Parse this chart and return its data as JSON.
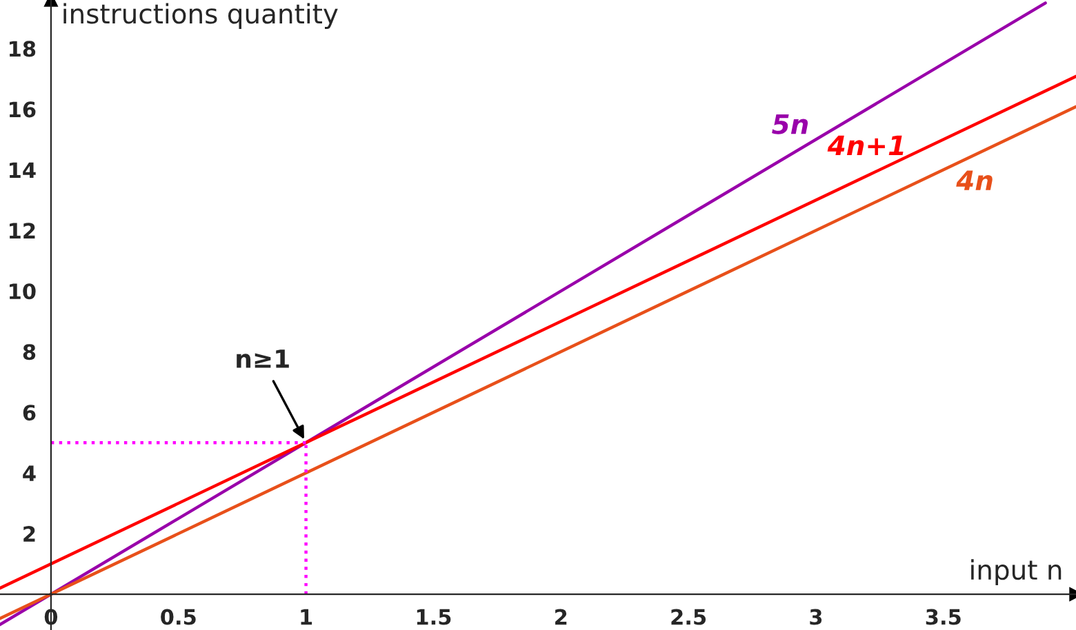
{
  "chart_data": {
    "type": "line",
    "xlabel": "input n",
    "ylabel": "instructions quantity",
    "series": [
      {
        "name": "5n",
        "color": "#9900aa",
        "x": [
          -0.2,
          3.9
        ],
        "values": [
          -1,
          19.5
        ]
      },
      {
        "name": "4n+1",
        "color": "#ff0000",
        "x": [
          -0.2,
          4.02
        ],
        "values": [
          0.2,
          17.08
        ]
      },
      {
        "name": "4n",
        "color": "#e8501a",
        "x": [
          -0.2,
          4.02
        ],
        "values": [
          -0.8,
          16.08
        ]
      },
      {
        "color": "#ff00ff",
        "x": [
          0,
          1
        ],
        "values": [
          5,
          5
        ],
        "line_style": "dotted"
      },
      {
        "color": "#ff00ff",
        "x": [
          1,
          1
        ],
        "values": [
          0,
          5
        ],
        "line_style": "dotted"
      }
    ],
    "annotations": [
      {
        "text": "n≥1",
        "x": 1,
        "y": 5
      }
    ],
    "xlim": [
      -0.2,
      4.02
    ],
    "ylim": [
      -1.18,
      19.6
    ],
    "xticks": [
      0,
      0.5,
      1,
      1.5,
      2,
      2.5,
      3,
      3.5
    ],
    "yticks": [
      2,
      4,
      6,
      8,
      10,
      12,
      14,
      16,
      18
    ],
    "legend": false,
    "marker": "none",
    "line_style": "solid"
  }
}
